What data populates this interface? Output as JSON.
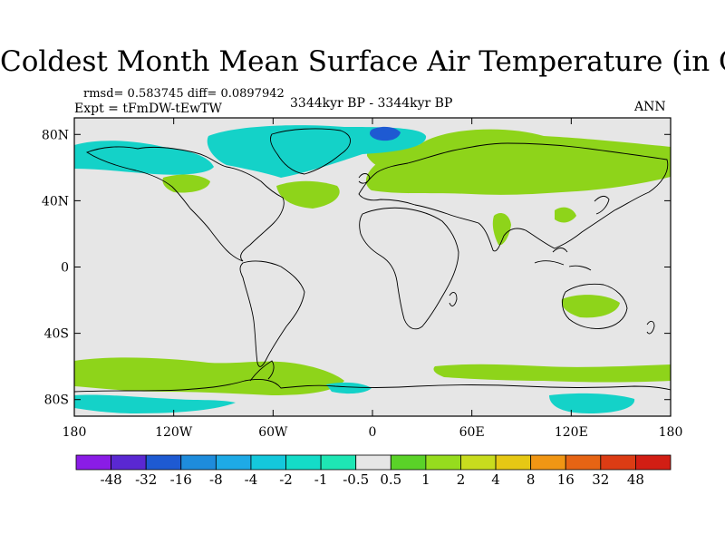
{
  "title": "Coldest Month Mean Surface Air Temperature (in C)",
  "stats": "rmsd= 0.583745  diff= 0.0897942",
  "experiment": "Expt = tFmDW-tEwTW",
  "period": "3344kyr BP - 3344kyr BP",
  "season": "ANN",
  "colors": {
    "neutral": "#e6e6e6",
    "land_outline": "#000000",
    "warm_green": "#8ed41a",
    "cool_cyan": "#14d2c8"
  },
  "map": {
    "lat_ticks": [
      {
        "value": 80,
        "label": "80N"
      },
      {
        "value": 40,
        "label": "40N"
      },
      {
        "value": 0,
        "label": "0"
      },
      {
        "value": -40,
        "label": "40S"
      },
      {
        "value": -80,
        "label": "80S"
      }
    ],
    "lon_ticks": [
      {
        "value": -180,
        "label": "180"
      },
      {
        "value": -120,
        "label": "120W"
      },
      {
        "value": -60,
        "label": "60W"
      },
      {
        "value": 0,
        "label": "0"
      },
      {
        "value": 60,
        "label": "60E"
      },
      {
        "value": 120,
        "label": "120E"
      },
      {
        "value": 180,
        "label": "180"
      }
    ],
    "lon_range": [
      -180,
      180
    ],
    "lat_range": [
      -90,
      90
    ]
  },
  "colorbar": {
    "colors": [
      "#8a1ce6",
      "#5a28d2",
      "#1e5ad2",
      "#1e8cdc",
      "#1eaae6",
      "#14c8dc",
      "#14dcc8",
      "#1ee6b4",
      "#e6e6e6",
      "#5ad228",
      "#96dc1e",
      "#c8dc1e",
      "#e6c814",
      "#f09614",
      "#e66414",
      "#dc3c14",
      "#d21e14"
    ],
    "labels": [
      "-48",
      "-32",
      "-16",
      "-8",
      "-4",
      "-2",
      "-1",
      "-0.5",
      "0.5",
      "1",
      "2",
      "4",
      "8",
      "16",
      "32",
      "48"
    ]
  }
}
